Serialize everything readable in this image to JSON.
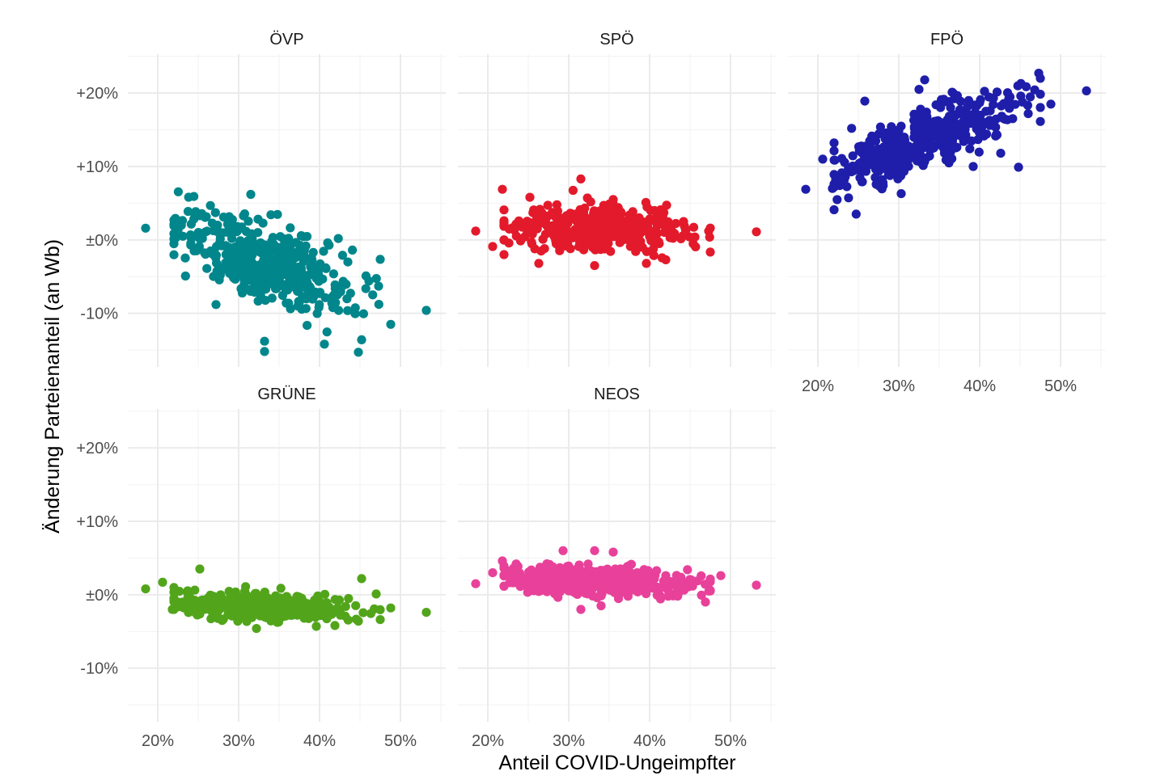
{
  "chart_data": {
    "type": "scatter",
    "xlabel": "Anteil COVID-Ungeimpfter",
    "ylabel": "Änderung Parteienanteil (an Wb)",
    "x_ticks": [
      {
        "value": 20,
        "label": "20%"
      },
      {
        "value": 30,
        "label": "30%"
      },
      {
        "value": 40,
        "label": "40%"
      },
      {
        "value": 50,
        "label": "50%"
      }
    ],
    "y_ticks": [
      {
        "value": 20,
        "label": "+20%"
      },
      {
        "value": 10,
        "label": "+10%"
      },
      {
        "value": 0,
        "label": "±0%"
      },
      {
        "value": -10,
        "label": "-10%"
      }
    ],
    "xlim": [
      16.3,
      55.6
    ],
    "ylim": [
      -17.3,
      25.3
    ],
    "grid": true,
    "facets": [
      {
        "name": "ÖVP",
        "color": "#00868B",
        "center_slope": -0.42,
        "center_intercept": 11.0,
        "spread": 2.6,
        "x_mean": 33,
        "x_sd": 5.5,
        "n": 420
      },
      {
        "name": "SPÖ",
        "color": "#E31A2B",
        "center_slope": -0.02,
        "center_intercept": 2.2,
        "spread": 1.4,
        "x_mean": 33,
        "x_sd": 5.5,
        "n": 420
      },
      {
        "name": "FPÖ",
        "color": "#1E1EAA",
        "center_slope": 0.43,
        "center_intercept": -0.5,
        "spread": 1.9,
        "x_mean": 33,
        "x_sd": 5.5,
        "n": 420
      },
      {
        "name": "GRÜNE",
        "color": "#52A51B",
        "center_slope": -0.05,
        "center_intercept": 0.0,
        "spread": 0.9,
        "x_mean": 33,
        "x_sd": 5.5,
        "n": 420
      },
      {
        "name": "NEOS",
        "color": "#E8419A",
        "center_slope": -0.05,
        "center_intercept": 3.5,
        "spread": 1.0,
        "x_mean": 33,
        "x_sd": 5.5,
        "n": 420
      }
    ],
    "notable_points": {
      "ÖVP": [
        [
          18.5,
          1.6
        ],
        [
          31.5,
          6.2
        ],
        [
          53.2,
          -9.6
        ],
        [
          48.8,
          -11.5
        ],
        [
          33.2,
          -15.2
        ],
        [
          44.8,
          -15.3
        ],
        [
          33.2,
          -13.8
        ],
        [
          40.6,
          -14.2
        ],
        [
          45.2,
          -13.6
        ],
        [
          47.3,
          -6.3
        ],
        [
          46.1,
          -5.6
        ],
        [
          43.5,
          -3.0
        ],
        [
          41.0,
          -0.4
        ],
        [
          37.5,
          -8.5
        ],
        [
          29.3,
          -5.0
        ],
        [
          27.2,
          -8.8
        ]
      ],
      "SPÖ": [
        [
          18.5,
          1.2
        ],
        [
          20.6,
          -0.9
        ],
        [
          21.8,
          6.9
        ],
        [
          26.3,
          -3.2
        ],
        [
          31.5,
          8.3
        ],
        [
          33.2,
          -3.5
        ],
        [
          39.6,
          -3.2
        ],
        [
          42.0,
          -2.7
        ],
        [
          47.3,
          1.2
        ],
        [
          53.2,
          1.1
        ],
        [
          45.6,
          0.4
        ],
        [
          44.2,
          2.5
        ],
        [
          40.6,
          4.0
        ],
        [
          35.5,
          5.5
        ],
        [
          25.2,
          5.8
        ]
      ],
      "FPÖ": [
        [
          18.5,
          6.9
        ],
        [
          20.6,
          11.0
        ],
        [
          21.8,
          7.0
        ],
        [
          22.2,
          8.2
        ],
        [
          25.8,
          18.9
        ],
        [
          32.5,
          20.5
        ],
        [
          33.2,
          21.8
        ],
        [
          40.0,
          18.7
        ],
        [
          47.3,
          22.7
        ],
        [
          53.2,
          20.3
        ],
        [
          48.8,
          18.5
        ],
        [
          44.8,
          9.9
        ],
        [
          42.6,
          11.8
        ],
        [
          39.2,
          10.0
        ],
        [
          36.2,
          10.5
        ],
        [
          46.0,
          17.2
        ],
        [
          45.1,
          21.3
        ]
      ],
      "GRÜNE": [
        [
          18.5,
          0.8
        ],
        [
          20.6,
          1.7
        ],
        [
          21.8,
          -2.0
        ],
        [
          25.2,
          3.5
        ],
        [
          32.2,
          -4.6
        ],
        [
          39.6,
          -4.3
        ],
        [
          48.8,
          -1.8
        ],
        [
          53.2,
          -2.4
        ],
        [
          44.8,
          -3.6
        ],
        [
          47.0,
          0.1
        ],
        [
          45.2,
          2.2
        ],
        [
          35.8,
          -2.5
        ]
      ],
      "NEOS": [
        [
          18.5,
          1.5
        ],
        [
          20.6,
          3.0
        ],
        [
          21.8,
          4.6
        ],
        [
          29.3,
          6.0
        ],
        [
          33.2,
          6.0
        ],
        [
          35.5,
          5.8
        ],
        [
          31.5,
          -2.0
        ],
        [
          34.0,
          -1.5
        ],
        [
          46.9,
          -1.0
        ],
        [
          48.8,
          2.6
        ],
        [
          53.2,
          1.3
        ],
        [
          43.5,
          0.0
        ],
        [
          42.0,
          2.6
        ],
        [
          23.5,
          4.2
        ]
      ]
    }
  }
}
